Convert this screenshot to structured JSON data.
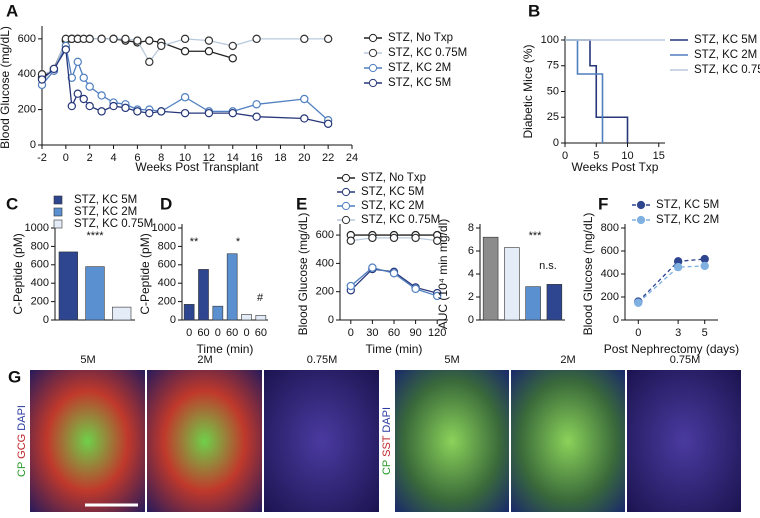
{
  "chart_data": [
    {
      "type": "line",
      "label": "A",
      "x_label": "Weeks Post Transplant",
      "y_label": "Blood Glucose (mg/dL)",
      "xlim": [
        -2,
        24
      ],
      "xticks": [
        -2,
        0,
        2,
        4,
        6,
        8,
        10,
        12,
        14,
        16,
        18,
        20,
        22,
        24
      ],
      "ylim": [
        0,
        650
      ],
      "yticks": [
        0,
        200,
        400,
        600
      ],
      "series": [
        {
          "name": "STZ, No Txp",
          "color": "#222222",
          "x": [
            -2,
            -1,
            0,
            0.5,
            1,
            2,
            3,
            4,
            5,
            6,
            7,
            8,
            10,
            12,
            14
          ],
          "values": [
            380,
            430,
            590,
            600,
            600,
            600,
            600,
            600,
            590,
            580,
            590,
            580,
            530,
            530,
            490
          ]
        },
        {
          "name": "STZ, KC 0.75M",
          "color": "#b9c9dd",
          "x": [
            -2,
            -1,
            0,
            0.5,
            1,
            1.5,
            2,
            3,
            4,
            5,
            6,
            7,
            8,
            10,
            12,
            14,
            16,
            20,
            22
          ],
          "values": [
            400,
            420,
            600,
            600,
            600,
            600,
            600,
            600,
            600,
            600,
            590,
            470,
            560,
            600,
            590,
            560,
            600,
            600,
            600
          ]
        },
        {
          "name": "STZ, KC 2M",
          "color": "#4f7fc0",
          "x": [
            -2,
            -1,
            0,
            0.5,
            1,
            1.5,
            2,
            3,
            4,
            5,
            6,
            7,
            8,
            10,
            12,
            14,
            16,
            20,
            22
          ],
          "values": [
            340,
            420,
            560,
            380,
            470,
            380,
            330,
            280,
            240,
            230,
            200,
            200,
            190,
            270,
            190,
            190,
            230,
            260,
            140
          ]
        },
        {
          "name": "STZ, KC 5M",
          "color": "#27377a",
          "x": [
            -2,
            -1,
            0,
            0.5,
            1,
            1.5,
            2,
            3,
            4,
            5,
            6,
            7,
            8,
            10,
            12,
            14,
            16,
            20,
            22
          ],
          "values": [
            370,
            430,
            540,
            220,
            290,
            260,
            220,
            190,
            220,
            210,
            190,
            180,
            190,
            180,
            180,
            180,
            160,
            150,
            120
          ]
        }
      ]
    },
    {
      "type": "step",
      "label": "B",
      "x_label": "Weeks Post Txp",
      "y_label": "Diabetic Mice (%)",
      "xlim": [
        0,
        16
      ],
      "xticks": [
        0,
        5,
        10,
        15
      ],
      "ylim": [
        0,
        100
      ],
      "yticks": [
        0,
        25,
        50,
        75,
        100
      ],
      "series": [
        {
          "name": "STZ, KC 5M",
          "color": "#27377a",
          "x": [
            0,
            4,
            5,
            10
          ],
          "values": [
            100,
            75,
            25,
            0
          ]
        },
        {
          "name": "STZ, KC 2M",
          "color": "#4f7fc0",
          "x": [
            0,
            2,
            6
          ],
          "values": [
            100,
            67,
            0
          ]
        },
        {
          "name": "STZ, KC 0.75M",
          "color": "#b9c9dd",
          "x": [
            0,
            16
          ],
          "values": [
            100,
            100
          ]
        }
      ]
    },
    {
      "type": "bar",
      "label": "C",
      "y_label": "C-Peptide (pM)",
      "ylim": [
        0,
        1000
      ],
      "yticks": [
        0,
        200,
        400,
        600,
        800,
        1000
      ],
      "annotations": [
        "****"
      ],
      "series": [
        {
          "name": "STZ, KC 5M",
          "color": "#2e4590",
          "values": [
            740
          ]
        },
        {
          "name": "STZ, KC 2M",
          "color": "#5a8fd0",
          "values": [
            580
          ]
        },
        {
          "name": "STZ, KC 0.75M",
          "color": "#e3ecf7",
          "values": [
            140
          ]
        }
      ]
    },
    {
      "type": "bar",
      "label": "D",
      "x_label": "Time  (min)",
      "y_label": "C-Peptide (pM)",
      "ylim": [
        0,
        1000
      ],
      "yticks": [
        0,
        200,
        400,
        600,
        800,
        1000
      ],
      "annotations": [
        "**",
        "*",
        "#"
      ],
      "categories": [
        "0",
        "60",
        "0",
        "60",
        "0",
        "60"
      ],
      "values": [
        170,
        550,
        150,
        720,
        60,
        50
      ],
      "colors": [
        "#2e4590",
        "#2e4590",
        "#5a8fd0",
        "#5a8fd0",
        "#e3ecf7",
        "#e3ecf7"
      ]
    },
    {
      "type": "line",
      "label": "E",
      "x_label": "Time (min)",
      "y_label": "Blood Glucose (mg/dL)",
      "x": [
        0,
        30,
        60,
        90,
        120
      ],
      "xlim": [
        -15,
        135
      ],
      "xticks": [
        0,
        30,
        60,
        90,
        120
      ],
      "ylim": [
        0,
        650
      ],
      "yticks": [
        0,
        200,
        400,
        600
      ],
      "series": [
        {
          "name": "STZ, No Txp",
          "color": "#222222",
          "values": [
            600,
            600,
            600,
            600,
            600
          ]
        },
        {
          "name": "STZ, KC 5M",
          "color": "#27377a",
          "values": [
            210,
            360,
            340,
            230,
            190
          ]
        },
        {
          "name": "STZ, KC 2M",
          "color": "#4f7fc0",
          "values": [
            240,
            370,
            330,
            220,
            170
          ]
        },
        {
          "name": "STZ, KC 0.75M",
          "color": "#b9c9dd",
          "values": [
            560,
            580,
            580,
            580,
            560
          ]
        }
      ]
    },
    {
      "type": "bar",
      "y_label": "AUC (10⁴ min mg/dl)",
      "ylim": [
        0,
        8
      ],
      "yticks": [
        0,
        2,
        4,
        6,
        8
      ],
      "annotations": [
        "***",
        "n.s."
      ],
      "categories": [
        null,
        null,
        null,
        null
      ],
      "values": [
        7.2,
        6.3,
        2.9,
        3.1
      ],
      "colors": [
        "#8c8c8c",
        "#e3ecf7",
        "#5a8fd0",
        "#2e4590"
      ]
    },
    {
      "type": "line",
      "label": "F",
      "x_label": "Post Nephrectomy (days)",
      "y_label": "Blood Glucose (mg/dL)",
      "x": [
        0,
        3,
        5
      ],
      "xlim": [
        -1,
        6
      ],
      "xticks": [
        0,
        3,
        5
      ],
      "ylim": [
        0,
        800
      ],
      "yticks": [
        0,
        200,
        400,
        600,
        800
      ],
      "dashed": true,
      "filled_markers": true,
      "series": [
        {
          "name": "STZ, KC 5M",
          "color": "#2e4590",
          "values": [
            160,
            510,
            530
          ]
        },
        {
          "name": "STZ, KC 2M",
          "color": "#7fb0e0",
          "values": [
            150,
            460,
            470
          ]
        }
      ]
    }
  ],
  "panel_g": {
    "label": "G",
    "image_labels": [
      "5M",
      "2M",
      "0.75M",
      "5M",
      "2M",
      "0.75M"
    ],
    "stain_left": [
      "CP",
      "GCG",
      "DAPI"
    ],
    "stain_right": [
      "CP",
      "SST",
      "DAPI"
    ]
  }
}
